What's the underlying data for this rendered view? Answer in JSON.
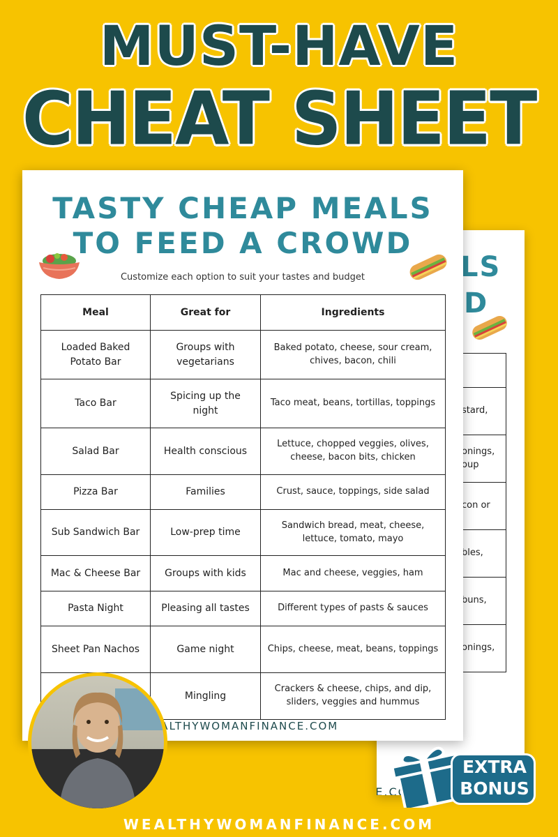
{
  "headline": {
    "line1": "MUST-HAVE",
    "line2": "CHEAT SHEET"
  },
  "sheet": {
    "title_line1": "TASTY CHEAP MEALS",
    "title_line2": "TO FEED A CROWD",
    "subtitle": "Customize each option to suit your tastes and budget",
    "url": "WEALTHYWOMANFINANCE.COM"
  },
  "table": {
    "headers": [
      "Meal",
      "Great for",
      "Ingredients"
    ],
    "rows": [
      {
        "meal": "Loaded Baked Potato Bar",
        "great_for": "Groups with vegetarians",
        "ingredients": "Baked potato, cheese, sour cream, chives, bacon, chili"
      },
      {
        "meal": "Taco Bar",
        "great_for": "Spicing up the night",
        "ingredients": "Taco meat, beans, tortillas, toppings"
      },
      {
        "meal": "Salad Bar",
        "great_for": "Health conscious",
        "ingredients": "Lettuce, chopped veggies, olives, cheese, bacon bits, chicken"
      },
      {
        "meal": "Pizza Bar",
        "great_for": "Families",
        "ingredients": "Crust, sauce, toppings, side salad"
      },
      {
        "meal": "Sub Sandwich Bar",
        "great_for": "Low-prep time",
        "ingredients": "Sandwich bread, meat, cheese, lettuce, tomato, mayo"
      },
      {
        "meal": "Mac & Cheese Bar",
        "great_for": "Groups with kids",
        "ingredients": "Mac and cheese, veggies, ham"
      },
      {
        "meal": "Pasta Night",
        "great_for": "Pleasing all tastes",
        "ingredients": "Different types of pasts & sauces"
      },
      {
        "meal": "Sheet Pan Nachos",
        "great_for": "Game night",
        "ingredients": "Chips, cheese, meat, beans, toppings"
      },
      {
        "meal": "",
        "great_for": "Mingling",
        "ingredients": "Crackers & cheese, chips, and dip, sliders, veggies and hummus"
      }
    ]
  },
  "back_sheet": {
    "title_fragment1": "LS",
    "title_fragment2": "D",
    "cells": [
      "stard,",
      "onings,",
      "oup",
      "con or",
      "bles,",
      "buns,",
      "onings,"
    ],
    "url": "WEALTHYWOMANFINANCE.COM"
  },
  "bonus": {
    "line1": "EXTRA",
    "line2": "BONUS"
  },
  "footer": {
    "url": "WEALTHYWOMANFINANCE.COM"
  },
  "colors": {
    "background": "#f7c300",
    "headline": "#1d4a4c",
    "title": "#2f8a9b",
    "badge": "#1d6b8a"
  }
}
